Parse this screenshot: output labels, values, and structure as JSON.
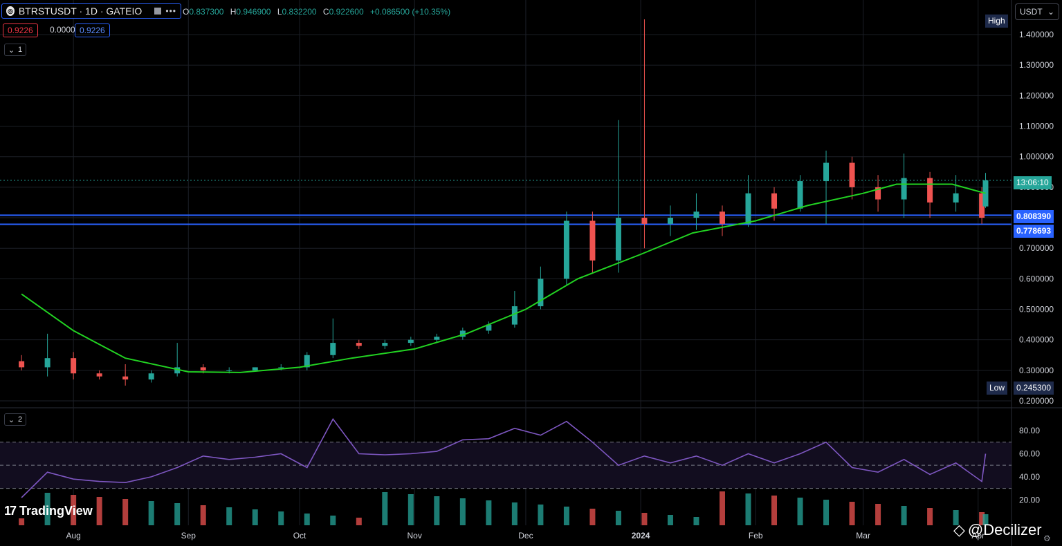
{
  "header": {
    "symbol_title": "BTRSTUSDT · 1D · GATEIO",
    "ohlc": {
      "open_label": "O",
      "open_value": "0.837300",
      "high_label": "H",
      "high_value": "0.946900",
      "low_label": "L",
      "low_value": "0.832200",
      "close_label": "C",
      "close_value": "0.922600",
      "change": "+0.086500 (+10.35%)"
    },
    "sell_price": "0.9226",
    "spread": "0.0000",
    "buy_price": "0.9226",
    "pane1_label": "1",
    "pane2_label": "2"
  },
  "currency_selector": "USDT",
  "price_axis": {
    "labels": [
      "1.400000",
      "1.300000",
      "1.200000",
      "1.100000",
      "1.000000",
      "0.900000",
      "0.800000",
      "0.700000",
      "0.600000",
      "0.500000",
      "0.400000",
      "0.300000",
      "0.200000"
    ],
    "high_tag": "High",
    "low_tag": "Low",
    "low_value": "0.245300",
    "countdown": "13:06:10",
    "hline_1": "0.808390",
    "hline_2": "0.778693"
  },
  "rsi_axis": {
    "labels": [
      "80.00",
      "60.00",
      "40.00",
      "20.00"
    ]
  },
  "time_axis": {
    "labels": [
      "Aug",
      "Sep",
      "Oct",
      "Nov",
      "Dec",
      "2024",
      "Feb",
      "Mar",
      "Apr"
    ]
  },
  "branding": {
    "logo": "17",
    "name": "TradingView",
    "watermark": "@Decilizer"
  },
  "colors": {
    "up": "#26a69a",
    "down": "#ef5350",
    "ma": "#22d322",
    "rsi": "#7e57c2",
    "hline": "#2962ff",
    "last_price": "#26a69a"
  },
  "chart_data": {
    "type": "candlestick",
    "symbol": "BTRSTUSDT",
    "interval": "1D",
    "exchange": "GATEIO",
    "ylim": [
      0.2,
      1.45
    ],
    "moving_average": [
      {
        "date": "2023-07-18",
        "value": 0.55
      },
      {
        "date": "2023-08-01",
        "value": 0.43
      },
      {
        "date": "2023-08-15",
        "value": 0.34
      },
      {
        "date": "2023-09-01",
        "value": 0.295
      },
      {
        "date": "2023-09-15",
        "value": 0.293
      },
      {
        "date": "2023-10-01",
        "value": 0.31
      },
      {
        "date": "2023-10-15",
        "value": 0.34
      },
      {
        "date": "2023-11-01",
        "value": 0.37
      },
      {
        "date": "2023-11-15",
        "value": 0.42
      },
      {
        "date": "2023-12-01",
        "value": 0.5
      },
      {
        "date": "2023-12-15",
        "value": 0.6
      },
      {
        "date": "2024-01-01",
        "value": 0.68
      },
      {
        "date": "2024-01-15",
        "value": 0.75
      },
      {
        "date": "2024-02-01",
        "value": 0.79
      },
      {
        "date": "2024-02-15",
        "value": 0.84
      },
      {
        "date": "2024-03-01",
        "value": 0.88
      },
      {
        "date": "2024-03-10",
        "value": 0.91
      },
      {
        "date": "2024-03-25",
        "value": 0.91
      },
      {
        "date": "2024-04-03",
        "value": 0.88
      }
    ],
    "candles": [
      {
        "date": "2023-07-18",
        "o": 0.33,
        "h": 0.35,
        "l": 0.3,
        "c": 0.31
      },
      {
        "date": "2023-07-25",
        "o": 0.31,
        "h": 0.42,
        "l": 0.28,
        "c": 0.34
      },
      {
        "date": "2023-08-01",
        "o": 0.34,
        "h": 0.36,
        "l": 0.27,
        "c": 0.29
      },
      {
        "date": "2023-08-08",
        "o": 0.29,
        "h": 0.3,
        "l": 0.27,
        "c": 0.28
      },
      {
        "date": "2023-08-15",
        "o": 0.28,
        "h": 0.32,
        "l": 0.25,
        "c": 0.27
      },
      {
        "date": "2023-08-22",
        "o": 0.27,
        "h": 0.3,
        "l": 0.26,
        "c": 0.29
      },
      {
        "date": "2023-08-29",
        "o": 0.29,
        "h": 0.39,
        "l": 0.28,
        "c": 0.31
      },
      {
        "date": "2023-09-05",
        "o": 0.31,
        "h": 0.32,
        "l": 0.29,
        "c": 0.3
      },
      {
        "date": "2023-09-12",
        "o": 0.3,
        "h": 0.31,
        "l": 0.29,
        "c": 0.3
      },
      {
        "date": "2023-09-19",
        "o": 0.3,
        "h": 0.31,
        "l": 0.3,
        "c": 0.31
      },
      {
        "date": "2023-09-26",
        "o": 0.31,
        "h": 0.32,
        "l": 0.3,
        "c": 0.31
      },
      {
        "date": "2023-10-03",
        "o": 0.31,
        "h": 0.36,
        "l": 0.3,
        "c": 0.35
      },
      {
        "date": "2023-10-10",
        "o": 0.35,
        "h": 0.47,
        "l": 0.34,
        "c": 0.39
      },
      {
        "date": "2023-10-17",
        "o": 0.39,
        "h": 0.4,
        "l": 0.37,
        "c": 0.38
      },
      {
        "date": "2023-10-24",
        "o": 0.38,
        "h": 0.4,
        "l": 0.37,
        "c": 0.39
      },
      {
        "date": "2023-10-31",
        "o": 0.39,
        "h": 0.41,
        "l": 0.38,
        "c": 0.4
      },
      {
        "date": "2023-11-07",
        "o": 0.4,
        "h": 0.42,
        "l": 0.39,
        "c": 0.41
      },
      {
        "date": "2023-11-14",
        "o": 0.41,
        "h": 0.44,
        "l": 0.4,
        "c": 0.43
      },
      {
        "date": "2023-11-21",
        "o": 0.43,
        "h": 0.46,
        "l": 0.42,
        "c": 0.45
      },
      {
        "date": "2023-11-28",
        "o": 0.45,
        "h": 0.56,
        "l": 0.44,
        "c": 0.51
      },
      {
        "date": "2023-12-05",
        "o": 0.51,
        "h": 0.64,
        "l": 0.5,
        "c": 0.6
      },
      {
        "date": "2023-12-12",
        "o": 0.6,
        "h": 0.82,
        "l": 0.58,
        "c": 0.79
      },
      {
        "date": "2023-12-19",
        "o": 0.79,
        "h": 0.82,
        "l": 0.62,
        "c": 0.66
      },
      {
        "date": "2023-12-26",
        "o": 0.66,
        "h": 1.12,
        "l": 0.62,
        "c": 0.8
      },
      {
        "date": "2024-01-02",
        "o": 0.8,
        "h": 1.45,
        "l": 0.7,
        "c": 0.78
      },
      {
        "date": "2024-01-09",
        "o": 0.78,
        "h": 0.84,
        "l": 0.74,
        "c": 0.8
      },
      {
        "date": "2024-01-16",
        "o": 0.8,
        "h": 0.88,
        "l": 0.76,
        "c": 0.82
      },
      {
        "date": "2024-01-23",
        "o": 0.82,
        "h": 0.84,
        "l": 0.74,
        "c": 0.78
      },
      {
        "date": "2024-01-30",
        "o": 0.78,
        "h": 0.94,
        "l": 0.77,
        "c": 0.88
      },
      {
        "date": "2024-02-06",
        "o": 0.88,
        "h": 0.9,
        "l": 0.79,
        "c": 0.83
      },
      {
        "date": "2024-02-13",
        "o": 0.83,
        "h": 0.94,
        "l": 0.82,
        "c": 0.92
      },
      {
        "date": "2024-02-20",
        "o": 0.92,
        "h": 1.02,
        "l": 0.78,
        "c": 0.98
      },
      {
        "date": "2024-02-27",
        "o": 0.98,
        "h": 1.0,
        "l": 0.86,
        "c": 0.9
      },
      {
        "date": "2024-03-05",
        "o": 0.9,
        "h": 0.94,
        "l": 0.82,
        "c": 0.86
      },
      {
        "date": "2024-03-12",
        "o": 0.86,
        "h": 1.01,
        "l": 0.8,
        "c": 0.93
      },
      {
        "date": "2024-03-19",
        "o": 0.93,
        "h": 0.95,
        "l": 0.8,
        "c": 0.85
      },
      {
        "date": "2024-03-26",
        "o": 0.85,
        "h": 0.94,
        "l": 0.82,
        "c": 0.88
      },
      {
        "date": "2024-04-02",
        "o": 0.88,
        "h": 0.9,
        "l": 0.78,
        "c": 0.8
      },
      {
        "date": "2024-04-03",
        "o": 0.837,
        "h": 0.9469,
        "l": 0.8322,
        "c": 0.9226
      }
    ],
    "rsi": {
      "ylim": [
        10,
        95
      ],
      "bands": [
        70,
        50,
        30
      ],
      "values": [
        {
          "date": "2023-07-18",
          "value": 22
        },
        {
          "date": "2023-07-25",
          "value": 44
        },
        {
          "date": "2023-08-01",
          "value": 38
        },
        {
          "date": "2023-08-08",
          "value": 36
        },
        {
          "date": "2023-08-15",
          "value": 35
        },
        {
          "date": "2023-08-22",
          "value": 40
        },
        {
          "date": "2023-08-29",
          "value": 48
        },
        {
          "date": "2023-09-05",
          "value": 58
        },
        {
          "date": "2023-09-12",
          "value": 55
        },
        {
          "date": "2023-09-19",
          "value": 57
        },
        {
          "date": "2023-09-26",
          "value": 60
        },
        {
          "date": "2023-10-03",
          "value": 48
        },
        {
          "date": "2023-10-10",
          "value": 90
        },
        {
          "date": "2023-10-17",
          "value": 60
        },
        {
          "date": "2023-10-24",
          "value": 59
        },
        {
          "date": "2023-10-31",
          "value": 60
        },
        {
          "date": "2023-11-07",
          "value": 62
        },
        {
          "date": "2023-11-14",
          "value": 72
        },
        {
          "date": "2023-11-21",
          "value": 73
        },
        {
          "date": "2023-11-28",
          "value": 82
        },
        {
          "date": "2023-12-05",
          "value": 76
        },
        {
          "date": "2023-12-12",
          "value": 88
        },
        {
          "date": "2023-12-19",
          "value": 70
        },
        {
          "date": "2023-12-26",
          "value": 50
        },
        {
          "date": "2024-01-02",
          "value": 58
        },
        {
          "date": "2024-01-09",
          "value": 52
        },
        {
          "date": "2024-01-16",
          "value": 58
        },
        {
          "date": "2024-01-23",
          "value": 50
        },
        {
          "date": "2024-01-30",
          "value": 60
        },
        {
          "date": "2024-02-06",
          "value": 52
        },
        {
          "date": "2024-02-13",
          "value": 60
        },
        {
          "date": "2024-02-20",
          "value": 70
        },
        {
          "date": "2024-02-27",
          "value": 48
        },
        {
          "date": "2024-03-05",
          "value": 44
        },
        {
          "date": "2024-03-12",
          "value": 55
        },
        {
          "date": "2024-03-19",
          "value": 42
        },
        {
          "date": "2024-03-26",
          "value": 52
        },
        {
          "date": "2024-04-02",
          "value": 36
        },
        {
          "date": "2024-04-03",
          "value": 60
        }
      ]
    }
  }
}
